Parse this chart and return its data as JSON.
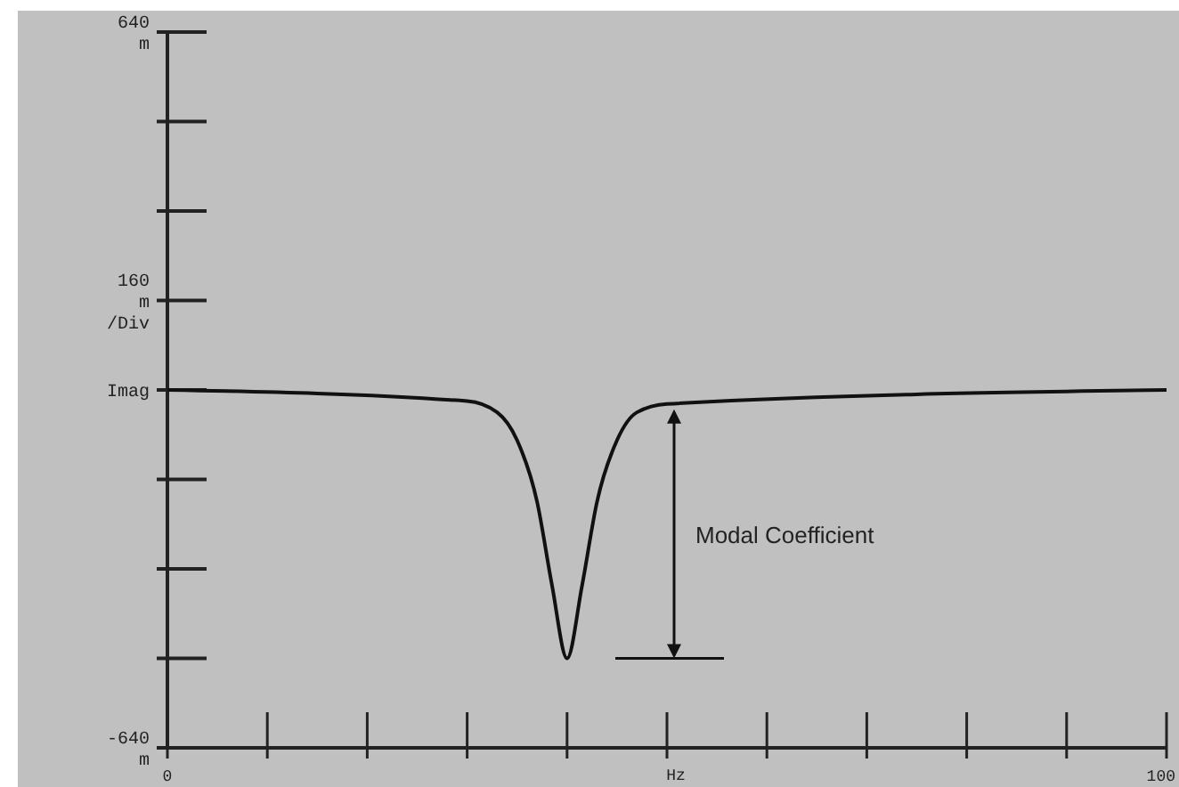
{
  "chart_data": {
    "type": "line",
    "xlabel": "Hz",
    "x": [
      0,
      30,
      33,
      35,
      37,
      38.5,
      40,
      41.5,
      43,
      45,
      47,
      50,
      100
    ],
    "series": [
      {
        "color": "#111111",
        "values": [
          0,
          -20,
          -40,
          -90,
          -200,
          -350,
          -480,
          -350,
          -200,
          -90,
          -40,
          -25,
          0
        ]
      }
    ],
    "xlim": [
      0,
      100
    ],
    "xticks": [
      0,
      {
        "value": 10,
        "label": null
      },
      {
        "value": 20,
        "label": null
      },
      {
        "value": 30,
        "label": null
      },
      {
        "value": 40,
        "label": null
      },
      {
        "value": 50,
        "label": null
      },
      {
        "value": 60,
        "label": null
      },
      {
        "value": 70,
        "label": null
      },
      {
        "value": 80,
        "label": null
      },
      {
        "value": 90,
        "label": null
      },
      100
    ],
    "ylim": [
      -640,
      640
    ],
    "yticks": [
      {
        "value": 640,
        "label": "640\nm"
      },
      {
        "value": 480,
        "label": null
      },
      {
        "value": 320,
        "label": null
      },
      {
        "value": 160,
        "label": "160\nm\n/Div"
      },
      {
        "value": 0,
        "label": "Imag"
      },
      {
        "value": -160,
        "label": null
      },
      {
        "value": -320,
        "label": null
      },
      {
        "value": -480,
        "label": null
      },
      {
        "value": -640,
        "label": "-640\nm"
      }
    ],
    "annotations": [
      "Modal Coefficient"
    ],
    "grid": false,
    "marker": "none",
    "line_style": "solid"
  }
}
